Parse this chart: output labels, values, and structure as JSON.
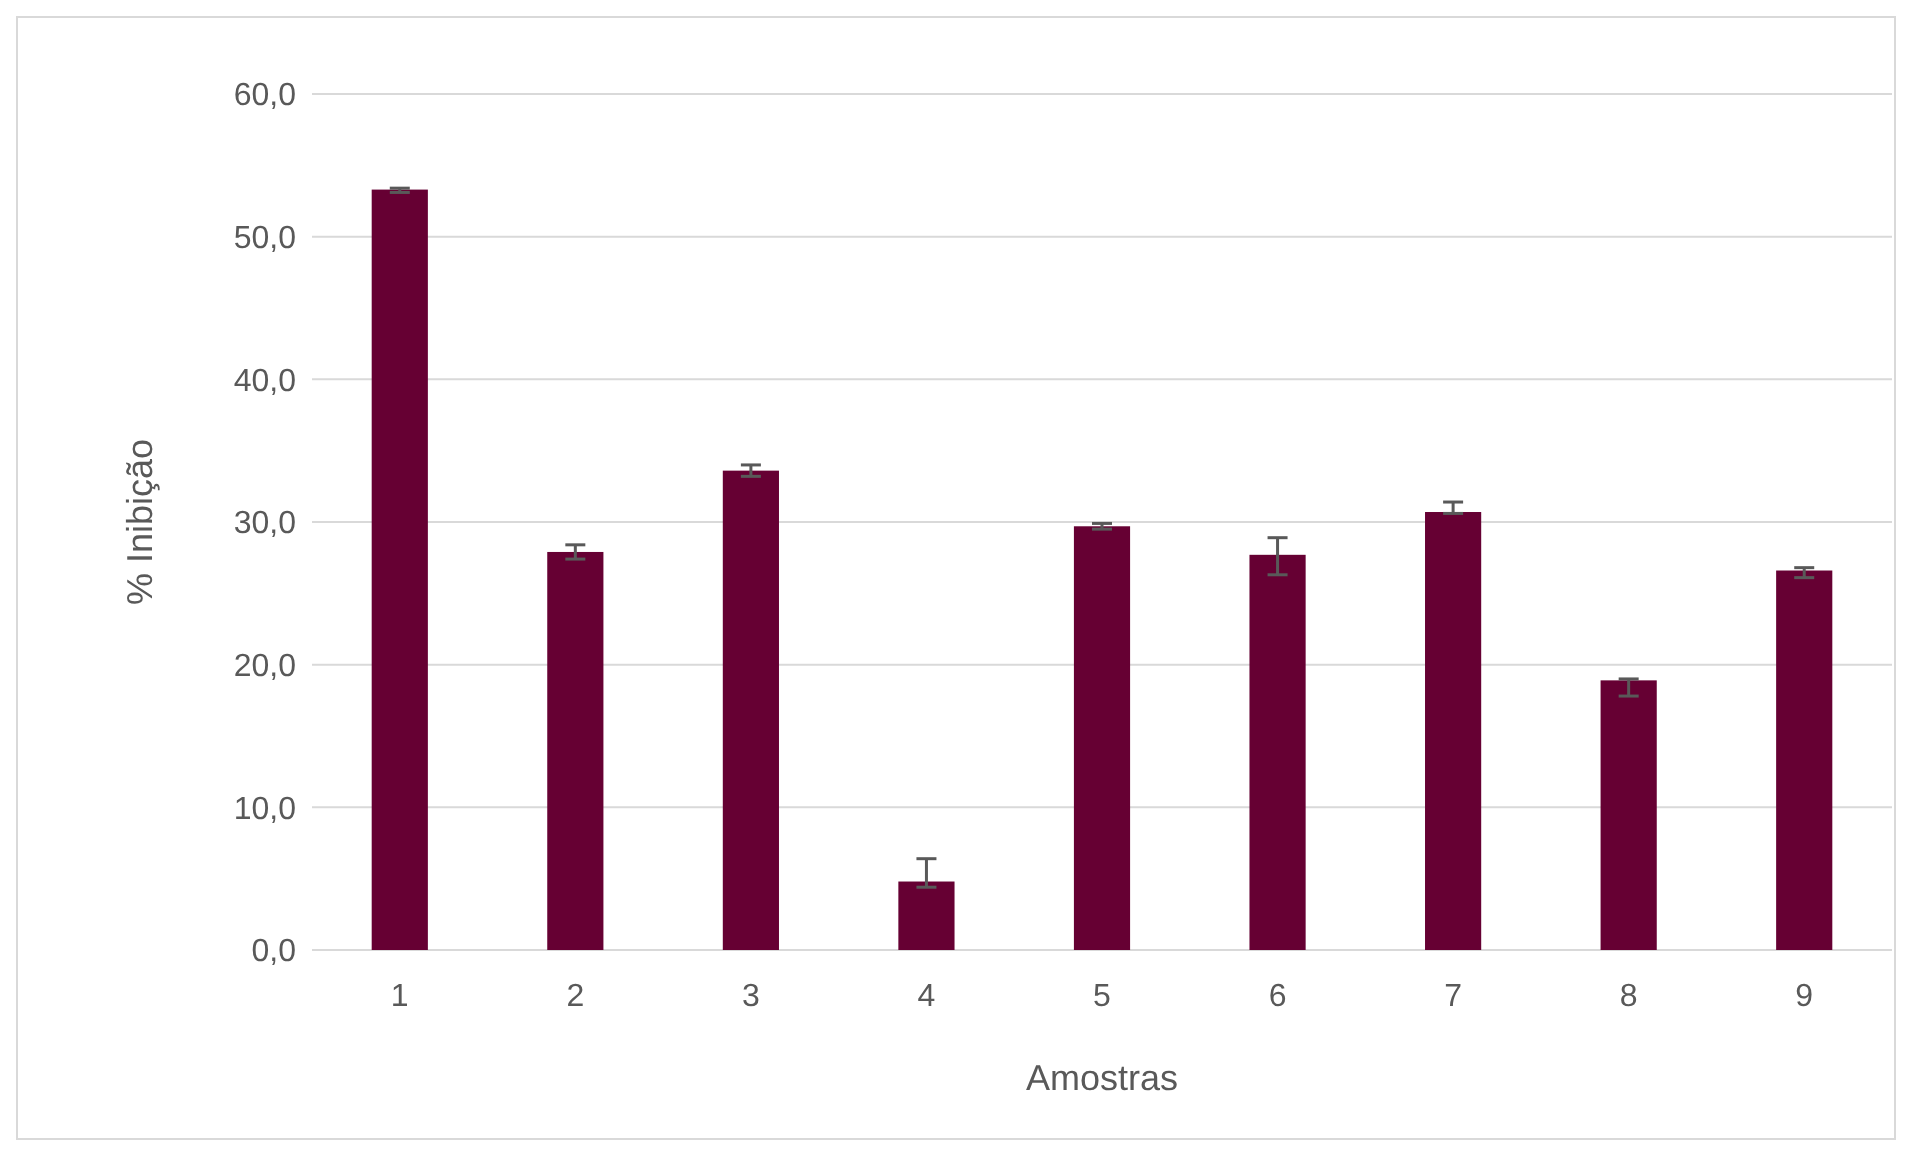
{
  "chart_data": {
    "type": "bar",
    "xlabel": "Amostras",
    "ylabel": "% Inibição",
    "categories": [
      "1",
      "2",
      "3",
      "4",
      "5",
      "6",
      "7",
      "8",
      "9"
    ],
    "values": [
      53.3,
      27.9,
      33.6,
      4.8,
      29.7,
      27.7,
      30.7,
      18.9,
      26.6
    ],
    "errors": [
      [
        53.1,
        53.4
      ],
      [
        27.4,
        28.4
      ],
      [
        33.2,
        34.0
      ],
      [
        4.4,
        6.4
      ],
      [
        29.5,
        29.9
      ],
      [
        26.3,
        28.9
      ],
      [
        30.6,
        31.4
      ],
      [
        17.8,
        19.0
      ],
      [
        26.1,
        26.8
      ]
    ],
    "color": "#660033",
    "ylim": [
      0,
      60
    ],
    "yticks": [
      {
        "value": 0,
        "label": "0,0"
      },
      {
        "value": 10,
        "label": "10,0"
      },
      {
        "value": 20,
        "label": "20,0"
      },
      {
        "value": 30,
        "label": "30,0"
      },
      {
        "value": 40,
        "label": "40,0"
      },
      {
        "value": 50,
        "label": "50,0"
      },
      {
        "value": 60,
        "label": "60,0"
      }
    ],
    "grid": "y"
  }
}
